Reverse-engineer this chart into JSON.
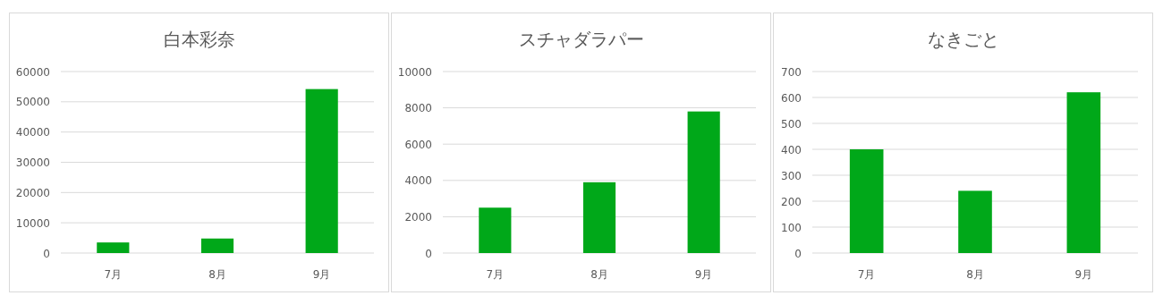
{
  "chart_data": [
    {
      "type": "bar",
      "title": "白本彩奈",
      "categories": [
        "7月",
        "8月",
        "9月"
      ],
      "values": [
        3500,
        4800,
        54200
      ],
      "color": "#00a819",
      "ylim": [
        0,
        60000
      ],
      "yticks": [
        0,
        10000,
        20000,
        30000,
        40000,
        50000,
        60000
      ],
      "grid": "y"
    },
    {
      "type": "bar",
      "title": "スチャダラパー",
      "categories": [
        "7月",
        "8月",
        "9月"
      ],
      "values": [
        2500,
        3900,
        7800
      ],
      "color": "#00a819",
      "ylim": [
        0,
        10000
      ],
      "yticks": [
        0,
        2000,
        4000,
        6000,
        8000,
        10000
      ],
      "grid": "y"
    },
    {
      "type": "bar",
      "title": "なきごと",
      "categories": [
        "7月",
        "8月",
        "9月"
      ],
      "values": [
        400,
        240,
        620
      ],
      "color": "#00a819",
      "ylim": [
        0,
        700
      ],
      "yticks": [
        0,
        100,
        200,
        300,
        400,
        500,
        600,
        700
      ],
      "grid": "y"
    }
  ]
}
